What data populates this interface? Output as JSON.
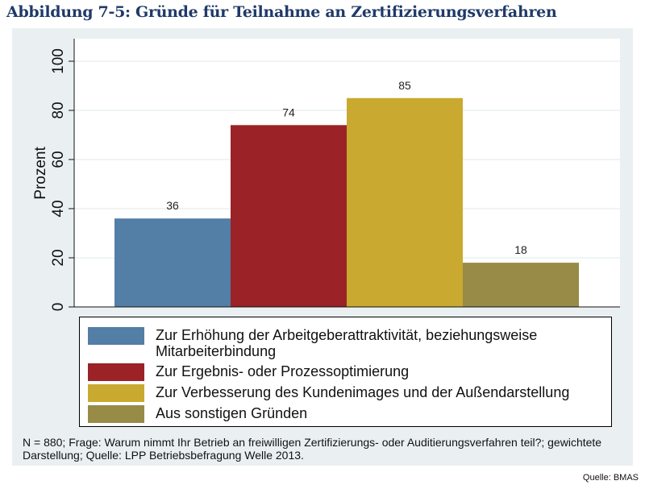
{
  "figure": {
    "title": "Abbildung 7-5: Gründe für Teilnahme an Zertifizierungsverfahren",
    "note": "N = 880; Frage: Warum nimmt Ihr Betrieb an freiwilligen Zertifizierungs- oder Auditierungsverfahren teil?; gewichtete Darstellung; Quelle: LPP Betriebsbefragung Welle 2013.",
    "source": "Quelle: BMAS"
  },
  "chart_data": {
    "type": "bar",
    "title": "",
    "xlabel": "",
    "ylabel": "Prozent",
    "ylim": [
      0,
      100
    ],
    "yticks": [
      "0",
      "20",
      "40",
      "60",
      "80",
      "100"
    ],
    "grid": true,
    "legend_position": "bottom",
    "categories": [
      "Zur Erhöhung der Arbeitgeberattraktivität, beziehungsweise Mitarbeiterbindung",
      "Zur Ergebnis- oder Prozessoptimierung",
      "Zur Verbesserung des Kundenimages und der Außendarstellung",
      "Aus sonstigen Gründen"
    ],
    "values": [
      36,
      74,
      85,
      18
    ],
    "value_labels": [
      "36",
      "74",
      "85",
      "18"
    ],
    "colors": [
      "#537ea6",
      "#9b2226",
      "#c9a92f",
      "#978b47"
    ]
  }
}
